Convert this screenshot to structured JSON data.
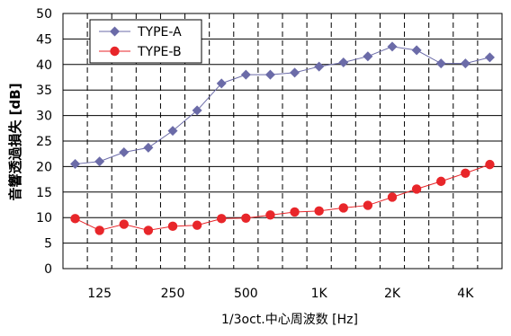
{
  "chart_data": {
    "type": "line",
    "xlabel": "1/3oct.中心周波数 [Hz]",
    "ylabel": "音響透過損失 [dB]",
    "ylim": [
      0,
      50
    ],
    "yticks": [
      0,
      5,
      10,
      15,
      20,
      25,
      30,
      35,
      40,
      45,
      50
    ],
    "x_tick_labels": [
      {
        "label": "125",
        "index": 1
      },
      {
        "label": "250",
        "index": 4
      },
      {
        "label": "500",
        "index": 7
      },
      {
        "label": "1K",
        "index": 10
      },
      {
        "label": "2K",
        "index": 13
      },
      {
        "label": "4K",
        "index": 16
      }
    ],
    "x_count": 18,
    "grid": "vertical dashed, horizontal solid",
    "legend_position": "top-left",
    "series": [
      {
        "name": "TYPE-A",
        "color": "#6b6ba8",
        "marker": "diamond",
        "values": [
          20.5,
          21.0,
          22.8,
          23.7,
          27.0,
          31.0,
          36.3,
          38.0,
          38.0,
          38.4,
          39.6,
          40.4,
          41.6,
          43.5,
          42.8,
          40.2,
          40.2,
          41.4
        ]
      },
      {
        "name": "TYPE-B",
        "color": "#e8262a",
        "marker": "circle",
        "values": [
          9.8,
          7.5,
          8.7,
          7.5,
          8.3,
          8.5,
          9.8,
          9.9,
          10.5,
          11.1,
          11.3,
          11.9,
          12.4,
          14.0,
          15.6,
          17.1,
          18.7,
          20.4
        ]
      }
    ]
  }
}
